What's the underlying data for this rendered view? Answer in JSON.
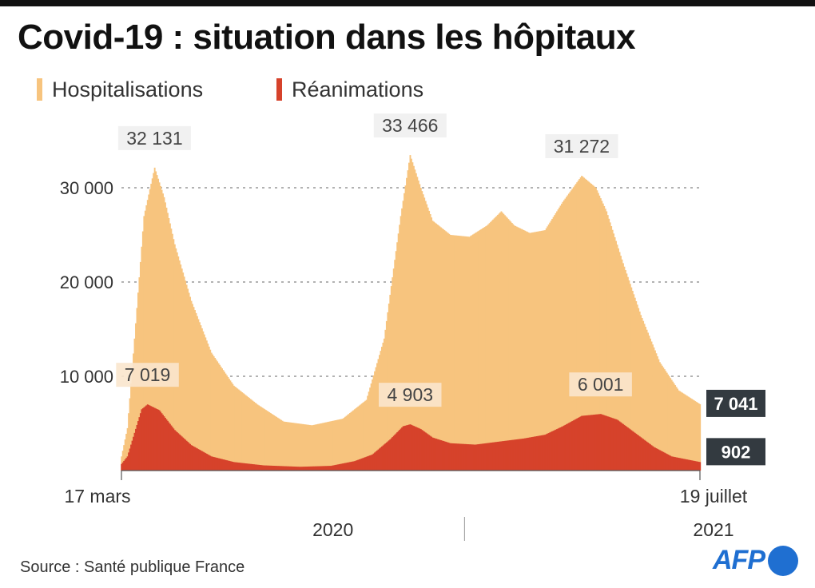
{
  "title": "Covid-19 : situation dans les hôpitaux",
  "source": "Source : Santé publique France",
  "logo": "AFP",
  "colors": {
    "hospitalisations": "#f7c47e",
    "reanimations": "#d6422b",
    "final_label_bg": "#333a40"
  },
  "chart_data": {
    "type": "area",
    "title": "Covid-19 : situation dans les hôpitaux",
    "x_axis": {
      "start_label": "17 mars",
      "end_label": "19 juillet",
      "period_labels": [
        "2020",
        "2021"
      ]
    },
    "y_axis": {
      "ylim": [
        0,
        35000
      ],
      "ticks": [
        10000,
        20000,
        30000
      ],
      "tick_labels": [
        "10 000",
        "20 000",
        "30 000"
      ],
      "grid": "dashed"
    },
    "legend_position": "top-left",
    "series": [
      {
        "name": "Hospitalisations",
        "color": "#f7c47e",
        "points": [
          [
            "2020-03-17",
            1500
          ],
          [
            "2020-03-22",
            4500
          ],
          [
            "2020-03-28",
            14000
          ],
          [
            "2020-04-05",
            27000
          ],
          [
            "2020-04-14",
            32131
          ],
          [
            "2020-04-22",
            29000
          ],
          [
            "2020-05-01",
            24000
          ],
          [
            "2020-05-15",
            18000
          ],
          [
            "2020-06-01",
            12500
          ],
          [
            "2020-06-20",
            9000
          ],
          [
            "2020-07-10",
            7000
          ],
          [
            "2020-08-01",
            5200
          ],
          [
            "2020-08-25",
            4800
          ],
          [
            "2020-09-20",
            5500
          ],
          [
            "2020-10-10",
            7500
          ],
          [
            "2020-10-25",
            14000
          ],
          [
            "2020-11-08",
            27000
          ],
          [
            "2020-11-16",
            33466
          ],
          [
            "2020-11-25",
            30000
          ],
          [
            "2020-12-05",
            26500
          ],
          [
            "2020-12-20",
            25000
          ],
          [
            "2021-01-05",
            24800
          ],
          [
            "2021-01-20",
            26000
          ],
          [
            "2021-02-01",
            27500
          ],
          [
            "2021-02-12",
            26000
          ],
          [
            "2021-02-25",
            25200
          ],
          [
            "2021-03-10",
            25500
          ],
          [
            "2021-03-25",
            28500
          ],
          [
            "2021-04-10",
            31272
          ],
          [
            "2021-04-22",
            30000
          ],
          [
            "2021-05-01",
            27500
          ],
          [
            "2021-05-15",
            22000
          ],
          [
            "2021-05-30",
            16500
          ],
          [
            "2021-06-15",
            11500
          ],
          [
            "2021-07-01",
            8500
          ],
          [
            "2021-07-19",
            7041
          ]
        ],
        "annotations": [
          {
            "label": "32 131",
            "date": "2020-04-14",
            "value": 32131
          },
          {
            "label": "33 466",
            "date": "2020-11-16",
            "value": 33466
          },
          {
            "label": "31 272",
            "date": "2021-04-10",
            "value": 31272
          }
        ],
        "final_label": "7 041"
      },
      {
        "name": "Réanimations",
        "color": "#d6422b",
        "points": [
          [
            "2020-03-17",
            700
          ],
          [
            "2020-03-22",
            1500
          ],
          [
            "2020-03-28",
            4000
          ],
          [
            "2020-04-03",
            6500
          ],
          [
            "2020-04-08",
            7019
          ],
          [
            "2020-04-18",
            6400
          ],
          [
            "2020-05-01",
            4300
          ],
          [
            "2020-05-15",
            2700
          ],
          [
            "2020-06-01",
            1500
          ],
          [
            "2020-06-20",
            900
          ],
          [
            "2020-07-15",
            550
          ],
          [
            "2020-08-15",
            400
          ],
          [
            "2020-09-10",
            500
          ],
          [
            "2020-09-30",
            1000
          ],
          [
            "2020-10-15",
            1700
          ],
          [
            "2020-10-30",
            3300
          ],
          [
            "2020-11-10",
            4700
          ],
          [
            "2020-11-16",
            4903
          ],
          [
            "2020-11-25",
            4400
          ],
          [
            "2020-12-05",
            3500
          ],
          [
            "2020-12-20",
            2900
          ],
          [
            "2021-01-10",
            2750
          ],
          [
            "2021-02-01",
            3100
          ],
          [
            "2021-02-20",
            3400
          ],
          [
            "2021-03-10",
            3800
          ],
          [
            "2021-03-25",
            4700
          ],
          [
            "2021-04-10",
            5800
          ],
          [
            "2021-04-26",
            6001
          ],
          [
            "2021-05-10",
            5400
          ],
          [
            "2021-05-25",
            4000
          ],
          [
            "2021-06-10",
            2500
          ],
          [
            "2021-06-25",
            1500
          ],
          [
            "2021-07-19",
            902
          ]
        ],
        "annotations": [
          {
            "label": "7 019",
            "date": "2020-04-08",
            "value": 7019
          },
          {
            "label": "4 903",
            "date": "2020-11-16",
            "value": 4903
          },
          {
            "label": "6 001",
            "date": "2021-04-26",
            "value": 6001
          }
        ],
        "final_label": "902"
      }
    ]
  }
}
